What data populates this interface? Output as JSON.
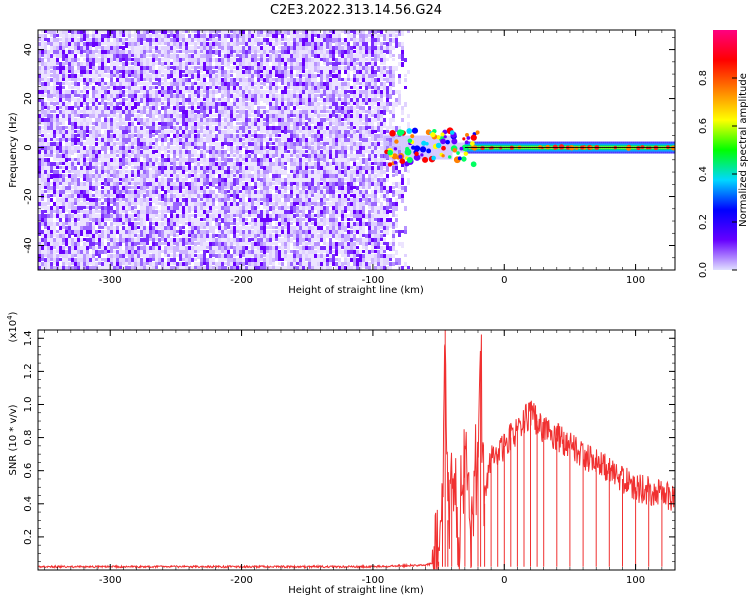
{
  "title": "C2E3.2022.313.14.56.G24",
  "chart_data": [
    {
      "type": "heatmap",
      "xlabel": "Height of straight line (km)",
      "ylabel": "Frequency (Hz)",
      "xlim": [
        -355,
        130
      ],
      "ylim": [
        -50,
        48
      ],
      "x_ticks": [
        -300,
        -200,
        -100,
        0,
        100
      ],
      "y_ticks": [
        -40,
        -20,
        0,
        20,
        40
      ],
      "noise_region_x": [
        -355,
        -72
      ],
      "signal_line_y": 0,
      "signal_start_x": -92,
      "colorbar": {
        "label": "Normalized spectral amplitude",
        "range": [
          0,
          1
        ],
        "ticks": [
          0.0,
          0.2,
          0.4,
          0.6,
          0.8
        ],
        "tick_labels": [
          "0.0",
          "0.2",
          "0.4",
          "0.6",
          "0.8"
        ],
        "colormap": [
          "#e0e0ff",
          "#6600ff",
          "#0000ff",
          "#00d8ff",
          "#00ff00",
          "#ffff00",
          "#ff8000",
          "#ff0000",
          "#ff0080"
        ]
      }
    },
    {
      "type": "line",
      "xlabel": "Height of straight line (km)",
      "ylabel": "SNR (10 * v/v)",
      "multiplier_label": "(x10",
      "multiplier_exp": "4",
      "multiplier_close": ")",
      "xlim": [
        -355,
        130
      ],
      "ylim": [
        0,
        1.45
      ],
      "x_ticks": [
        -300,
        -200,
        -100,
        0,
        100
      ],
      "y_ticks": [
        0.2,
        0.4,
        0.6,
        0.8,
        1.0,
        1.2,
        1.4
      ],
      "y_tick_labels": [
        "0.2",
        "0.4",
        "0.6",
        "0.8",
        "1.0",
        "1.2",
        "1.4"
      ],
      "series": [
        {
          "color": "#f03030",
          "x": [
            -355,
            -300,
            -250,
            -200,
            -150,
            -100,
            -60,
            -50,
            -47,
            -45,
            -43,
            -40,
            -35,
            -30,
            -25,
            -20,
            -18,
            -15,
            -10,
            -5,
            0,
            5,
            10,
            15,
            20,
            25,
            30,
            40,
            50,
            60,
            70,
            80,
            90,
            100,
            110,
            120,
            130
          ],
          "y": [
            0.02,
            0.02,
            0.02,
            0.02,
            0.02,
            0.02,
            0.03,
            0.05,
            0.5,
            1.45,
            0.3,
            0.6,
            0.15,
            0.7,
            0.3,
            0.75,
            1.25,
            0.4,
            0.7,
            0.7,
            0.75,
            0.8,
            0.85,
            0.9,
            0.95,
            0.9,
            0.85,
            0.8,
            0.75,
            0.7,
            0.65,
            0.6,
            0.55,
            0.5,
            0.48,
            0.45,
            0.43
          ]
        }
      ]
    }
  ]
}
